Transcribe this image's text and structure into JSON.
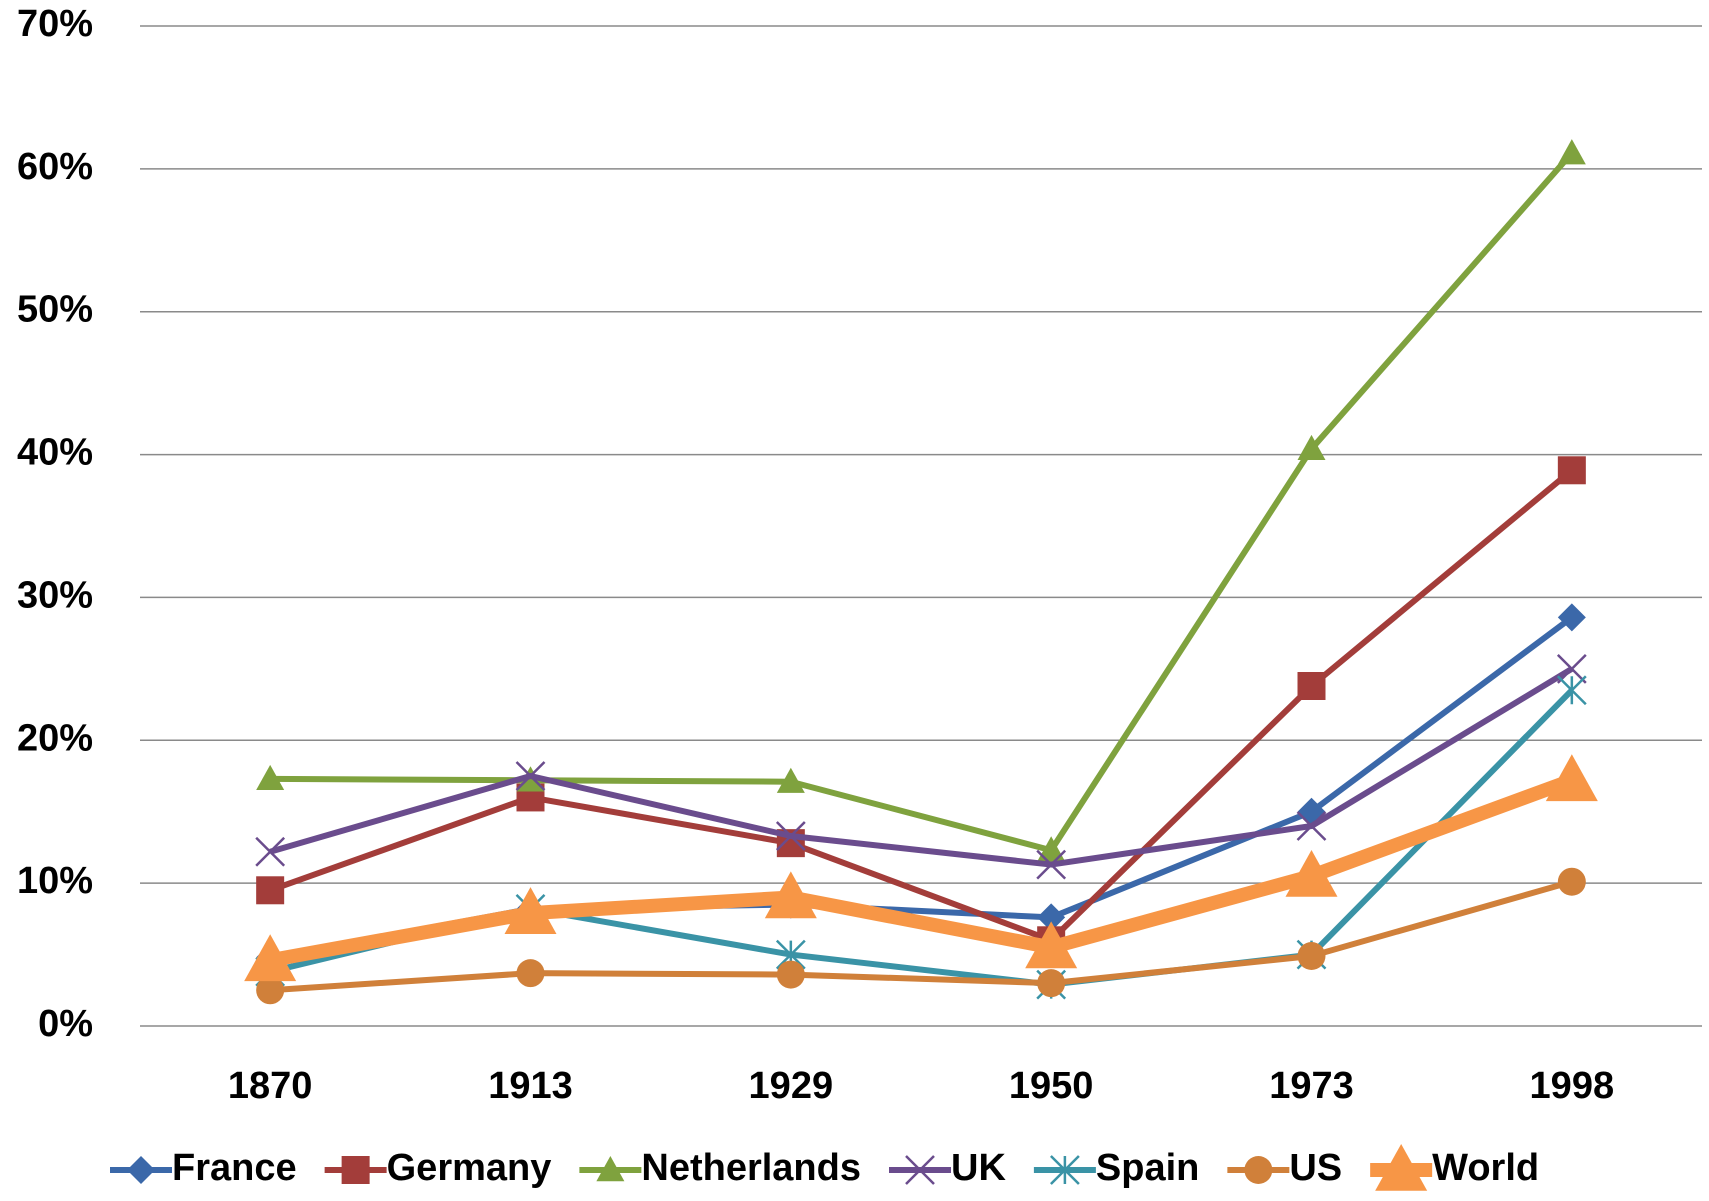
{
  "chart_data": {
    "type": "line",
    "categories": [
      "1870",
      "1913",
      "1929",
      "1950",
      "1973",
      "1998"
    ],
    "ylim": [
      0,
      70
    ],
    "yticks": [
      {
        "value": 0,
        "label": "0%"
      },
      {
        "value": 10,
        "label": "10%"
      },
      {
        "value": 20,
        "label": "20%"
      },
      {
        "value": 30,
        "label": "30%"
      },
      {
        "value": 40,
        "label": "40%"
      },
      {
        "value": 50,
        "label": "50%"
      },
      {
        "value": 60,
        "label": "60%"
      },
      {
        "value": 70,
        "label": "70%"
      }
    ],
    "grid": true,
    "legend": "bottom",
    "series": [
      {
        "name": "France",
        "color": "#3b68a9",
        "marker": "diamond",
        "line_width": 6,
        "values": [
          4.8,
          8.2,
          8.5,
          7.6,
          15.0,
          28.6
        ]
      },
      {
        "name": "Germany",
        "color": "#a33d3a",
        "marker": "square",
        "line_width": 6,
        "values": [
          9.5,
          16.0,
          12.8,
          6.0,
          23.8,
          38.9
        ]
      },
      {
        "name": "Netherlands",
        "color": "#7fa23e",
        "marker": "triangle",
        "line_width": 6,
        "values": [
          17.3,
          17.2,
          17.1,
          12.3,
          40.4,
          61.1
        ]
      },
      {
        "name": "UK",
        "color": "#6a4c8d",
        "marker": "x",
        "line_width": 6,
        "values": [
          12.2,
          17.5,
          13.3,
          11.3,
          14.0,
          25.0
        ]
      },
      {
        "name": "Spain",
        "color": "#3a93a6",
        "marker": "star",
        "line_width": 6,
        "values": [
          3.8,
          8.2,
          5.0,
          2.9,
          5.0,
          23.5
        ]
      },
      {
        "name": "US",
        "color": "#d0803a",
        "marker": "circle",
        "line_width": 6,
        "values": [
          2.5,
          3.7,
          3.6,
          3.0,
          4.9,
          10.1
        ]
      },
      {
        "name": "World",
        "color": "#f79646",
        "marker": "big-triangle",
        "line_width": 14,
        "values": [
          4.6,
          7.9,
          9.0,
          5.5,
          10.5,
          17.2
        ]
      }
    ]
  }
}
